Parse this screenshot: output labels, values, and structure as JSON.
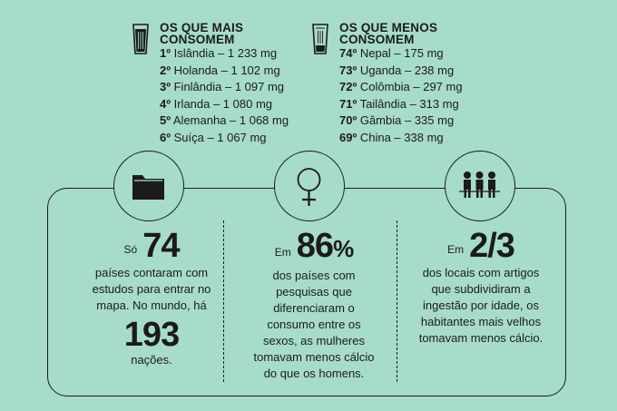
{
  "most": {
    "title": "OS QUE MAIS CONSOMEM",
    "items": [
      {
        "rank": "1º",
        "text": "Islândia – 1 233 mg"
      },
      {
        "rank": "2º",
        "text": "Holanda – 1 102 mg"
      },
      {
        "rank": "3º",
        "text": "Finlândia – 1 097 mg"
      },
      {
        "rank": "4º",
        "text": "Irlanda – 1 080 mg"
      },
      {
        "rank": "5º",
        "text": "Alemanha – 1 068 mg"
      },
      {
        "rank": "6º",
        "text": "Suíça – 1 067 mg"
      }
    ]
  },
  "least": {
    "title": "OS QUE MENOS CONSOMEM",
    "items": [
      {
        "rank": "74º",
        "text": "Nepal – 175 mg"
      },
      {
        "rank": "73º",
        "text": "Uganda – 238 mg"
      },
      {
        "rank": "72º",
        "text": "Colômbia – 297 mg"
      },
      {
        "rank": "71º",
        "text": "Tailândia – 313 mg"
      },
      {
        "rank": "70º",
        "text": "Gâmbia – 335 mg"
      },
      {
        "rank": "69º",
        "text": "China – 338 mg"
      }
    ]
  },
  "stats": [
    {
      "prefix": "Só",
      "number": "74",
      "text": "países contaram com estudos para entrar no mapa. No mundo, há",
      "number2": "193",
      "suffix": "nações.",
      "icon": "folder-icon"
    },
    {
      "prefix": "Em",
      "number": "86",
      "unit": "%",
      "text": "dos países com pesquisas que diferenciaram o consumo entre os sexos, as mulheres tomavam menos cálcio do que os homens.",
      "icon": "female-symbol-icon"
    },
    {
      "prefix": "Em",
      "number": "2/3",
      "text": "dos locais com artigos que subdividiram a ingestão por idade, os habitantes mais velhos tomavam menos cálcio.",
      "icon": "people-group-icon"
    }
  ],
  "colors": {
    "background": "#a7dcc8",
    "ink": "#1b1b1b"
  }
}
